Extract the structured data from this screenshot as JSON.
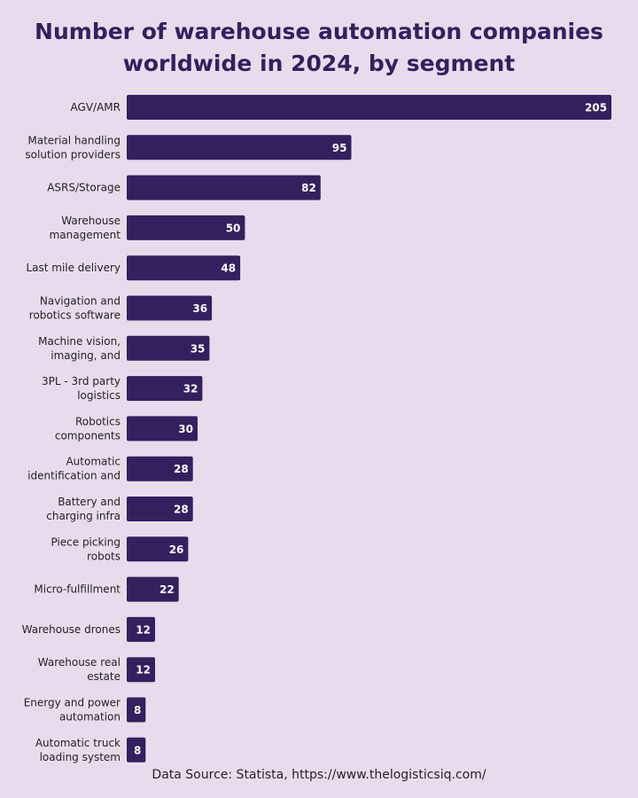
{
  "title_line1": "Number of warehouse automation companies",
  "title_line2": "worldwide in 2024, by segment",
  "source": "Data Source: Statista, https://www.thelogisticsiq.com/",
  "colors": {
    "background": "#e8dcec",
    "bar": "#33205f",
    "title": "#33205f",
    "value_label": "#ffffff",
    "category_label": "#222222"
  },
  "chart_data": {
    "type": "bar",
    "orientation": "horizontal",
    "title": "Number of warehouse automation companies worldwide in 2024, by segment",
    "xlabel": "",
    "ylabel": "",
    "xlim": [
      0,
      205
    ],
    "grid": false,
    "legend": "none",
    "categories": [
      [
        "AGV/AMR"
      ],
      [
        "Material handling",
        "solution providers"
      ],
      [
        "ASRS/Storage"
      ],
      [
        "Warehouse",
        "management"
      ],
      [
        "Last mile delivery"
      ],
      [
        "Navigation and",
        "robotics software"
      ],
      [
        "Machine vision,",
        "imaging, and"
      ],
      [
        "3PL - 3rd party",
        "logistics"
      ],
      [
        "Robotics",
        "components"
      ],
      [
        "Automatic",
        "identification and"
      ],
      [
        "Battery and",
        "charging infra"
      ],
      [
        "Piece picking",
        "robots"
      ],
      [
        "Micro-fulfillment"
      ],
      [
        "Warehouse drones"
      ],
      [
        "Warehouse real",
        "estate"
      ],
      [
        "Energy and power",
        "automation"
      ],
      [
        "Automatic truck",
        "loading system"
      ]
    ],
    "values": [
      205,
      95,
      82,
      50,
      48,
      36,
      35,
      32,
      30,
      28,
      28,
      26,
      22,
      12,
      12,
      8,
      8
    ]
  }
}
